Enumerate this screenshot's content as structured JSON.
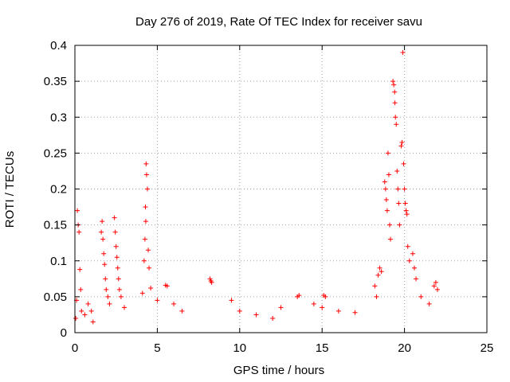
{
  "chart_data": {
    "type": "scatter",
    "title": "Day 276 of 2019, Rate Of TEC Index for receiver savu",
    "xlabel": "GPS time / hours",
    "ylabel": "ROTI / TECUs",
    "xlim": [
      0,
      25
    ],
    "ylim": [
      0,
      0.4
    ],
    "xticks": [
      "0",
      "5",
      "10",
      "15",
      "20",
      "25"
    ],
    "yticks": [
      "0",
      "0.05",
      "0.1",
      "0.15",
      "0.2",
      "0.25",
      "0.3",
      "0.35",
      "0.4"
    ],
    "grid": true,
    "marker": "plus",
    "color": "#ff0000",
    "series": [
      {
        "points": [
          [
            0.05,
            0.02
          ],
          [
            0.1,
            0.045
          ],
          [
            0.15,
            0.17
          ],
          [
            0.2,
            0.15
          ],
          [
            0.25,
            0.14
          ],
          [
            0.3,
            0.088
          ],
          [
            0.35,
            0.06
          ],
          [
            0.4,
            0.03
          ],
          [
            0.6,
            0.025
          ],
          [
            0.8,
            0.04
          ],
          [
            1.0,
            0.03
          ],
          [
            1.1,
            0.015
          ],
          [
            1.6,
            0.14
          ],
          [
            1.65,
            0.155
          ],
          [
            1.7,
            0.13
          ],
          [
            1.75,
            0.11
          ],
          [
            1.8,
            0.095
          ],
          [
            1.85,
            0.075
          ],
          [
            1.9,
            0.06
          ],
          [
            2.0,
            0.05
          ],
          [
            2.1,
            0.04
          ],
          [
            2.4,
            0.16
          ],
          [
            2.45,
            0.14
          ],
          [
            2.5,
            0.12
          ],
          [
            2.55,
            0.105
          ],
          [
            2.6,
            0.09
          ],
          [
            2.65,
            0.075
          ],
          [
            2.7,
            0.06
          ],
          [
            2.8,
            0.05
          ],
          [
            3.0,
            0.035
          ],
          [
            4.1,
            0.055
          ],
          [
            4.2,
            0.1
          ],
          [
            4.25,
            0.13
          ],
          [
            4.28,
            0.175
          ],
          [
            4.3,
            0.155
          ],
          [
            4.32,
            0.235
          ],
          [
            4.35,
            0.22
          ],
          [
            4.4,
            0.2
          ],
          [
            4.45,
            0.115
          ],
          [
            4.5,
            0.09
          ],
          [
            4.6,
            0.062
          ],
          [
            5.5,
            0.066
          ],
          [
            5.6,
            0.065
          ],
          [
            5.0,
            0.045
          ],
          [
            6.0,
            0.04
          ],
          [
            6.5,
            0.03
          ],
          [
            8.2,
            0.075
          ],
          [
            8.25,
            0.072
          ],
          [
            8.3,
            0.07
          ],
          [
            9.5,
            0.045
          ],
          [
            10.0,
            0.03
          ],
          [
            11.0,
            0.025
          ],
          [
            12.0,
            0.02
          ],
          [
            12.5,
            0.035
          ],
          [
            13.5,
            0.05
          ],
          [
            13.6,
            0.052
          ],
          [
            14.5,
            0.04
          ],
          [
            15.0,
            0.035
          ],
          [
            15.1,
            0.052
          ],
          [
            15.2,
            0.05
          ],
          [
            16.0,
            0.03
          ],
          [
            17.0,
            0.028
          ],
          [
            18.2,
            0.065
          ],
          [
            18.3,
            0.05
          ],
          [
            18.4,
            0.08
          ],
          [
            18.5,
            0.09
          ],
          [
            18.6,
            0.085
          ],
          [
            18.8,
            0.21
          ],
          [
            18.85,
            0.2
          ],
          [
            18.9,
            0.185
          ],
          [
            18.95,
            0.17
          ],
          [
            19.0,
            0.25
          ],
          [
            19.05,
            0.22
          ],
          [
            19.1,
            0.15
          ],
          [
            19.15,
            0.13
          ],
          [
            19.3,
            0.35
          ],
          [
            19.35,
            0.345
          ],
          [
            19.4,
            0.335
          ],
          [
            19.42,
            0.32
          ],
          [
            19.45,
            0.3
          ],
          [
            19.5,
            0.29
          ],
          [
            19.55,
            0.225
          ],
          [
            19.6,
            0.2
          ],
          [
            19.65,
            0.18
          ],
          [
            19.7,
            0.15
          ],
          [
            19.8,
            0.26
          ],
          [
            19.85,
            0.265
          ],
          [
            19.9,
            0.39
          ],
          [
            19.95,
            0.235
          ],
          [
            20.0,
            0.2
          ],
          [
            20.05,
            0.18
          ],
          [
            20.1,
            0.17
          ],
          [
            20.15,
            0.165
          ],
          [
            20.2,
            0.12
          ],
          [
            20.3,
            0.1
          ],
          [
            20.5,
            0.11
          ],
          [
            20.6,
            0.09
          ],
          [
            20.7,
            0.075
          ],
          [
            21.0,
            0.05
          ],
          [
            21.5,
            0.04
          ],
          [
            21.8,
            0.065
          ],
          [
            21.9,
            0.07
          ],
          [
            22.0,
            0.06
          ]
        ]
      }
    ]
  }
}
